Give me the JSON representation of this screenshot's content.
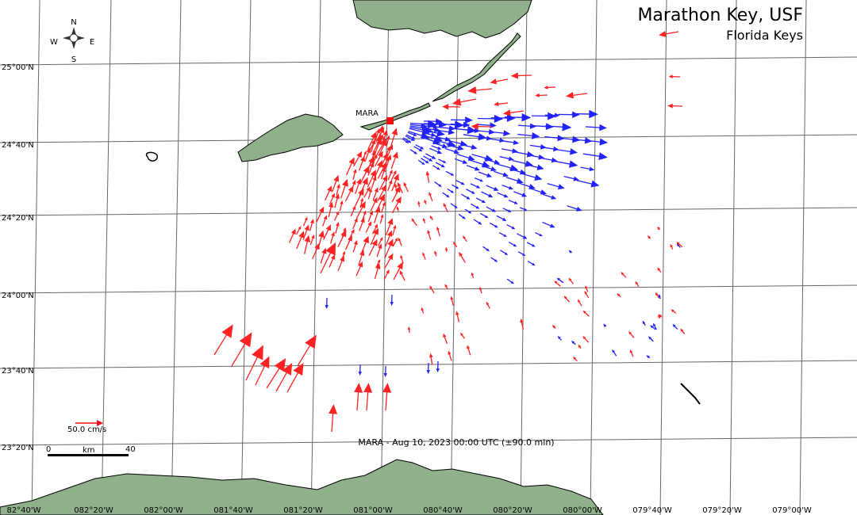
{
  "header": {
    "title": "Marathon Key, USF",
    "subtitle": "Florida Keys"
  },
  "compass": {
    "n": "N",
    "s": "S",
    "e": "E",
    "w": "W"
  },
  "station": {
    "label": "MARA"
  },
  "timestamp": "MARA - Aug 10, 2023 00:00 UTC (±90.0 min)",
  "legend": {
    "vector_scale": "50.0 cm/s",
    "scale_start": "0",
    "scale_unit": "km",
    "scale_end": "40"
  },
  "lat_labels": [
    "25°00'N",
    "24°40'N",
    "24°20'N",
    "24°00'N",
    "23°40'N",
    "23°20'N"
  ],
  "lon_labels": [
    "82°40'W",
    "082°20'W",
    "082°00'W",
    "081°40'W",
    "081°20'W",
    "081°00'W",
    "080°40'W",
    "080°20'W",
    "080°00'W",
    "079°40'W",
    "079°20'W",
    "079°00'W"
  ]
}
